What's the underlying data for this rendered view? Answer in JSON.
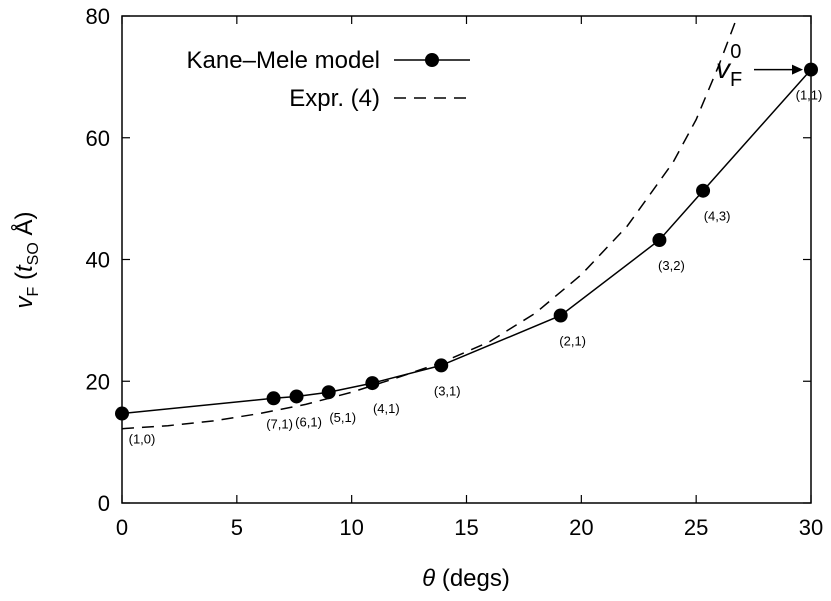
{
  "chart_data": {
    "type": "line",
    "xlabel_symbol": "θ",
    "xlabel_rest": " (degs)",
    "ylabel_v": "v",
    "ylabel_sub": "F",
    "ylabel_open": " (",
    "ylabel_t": "t",
    "ylabel_tsub": "SO",
    "ylabel_close": " Å)",
    "xlim": [
      0,
      30
    ],
    "ylim": [
      0,
      80
    ],
    "xticks": [
      0,
      5,
      10,
      15,
      20,
      25,
      30
    ],
    "yticks": [
      0,
      20,
      40,
      60,
      80
    ],
    "legend_placement": "top-left",
    "series": [
      {
        "name": "Kane–Mele model",
        "style": "solid-with-markers",
        "color": "#000000",
        "points": [
          {
            "x": 0.0,
            "y": 14.7,
            "label": "(1,0)"
          },
          {
            "x": 6.6,
            "y": 17.2,
            "label": "(7,1)"
          },
          {
            "x": 7.6,
            "y": 17.5,
            "label": "(6,1)"
          },
          {
            "x": 9.0,
            "y": 18.2,
            "label": "(5,1)"
          },
          {
            "x": 10.9,
            "y": 19.7,
            "label": "(4,1)"
          },
          {
            "x": 13.9,
            "y": 22.6,
            "label": "(3,1)"
          },
          {
            "x": 19.1,
            "y": 30.8,
            "label": "(2,1)"
          },
          {
            "x": 23.4,
            "y": 43.2,
            "label": "(3,2)"
          },
          {
            "x": 25.3,
            "y": 51.3,
            "label": "(4,3)"
          },
          {
            "x": 30.0,
            "y": 71.2,
            "label": "(1,1)"
          }
        ]
      },
      {
        "name": "Expr. (4)",
        "style": "dashed",
        "color": "#000000",
        "points": [
          {
            "x": 0,
            "y": 12.2
          },
          {
            "x": 2,
            "y": 12.7
          },
          {
            "x": 4,
            "y": 13.5
          },
          {
            "x": 6,
            "y": 14.7
          },
          {
            "x": 8,
            "y": 16.2
          },
          {
            "x": 10,
            "y": 18.2
          },
          {
            "x": 12,
            "y": 20.6
          },
          {
            "x": 14,
            "y": 23.2
          },
          {
            "x": 16,
            "y": 26.5
          },
          {
            "x": 18,
            "y": 31.2
          },
          {
            "x": 20,
            "y": 37.5
          },
          {
            "x": 22,
            "y": 45.5
          },
          {
            "x": 24,
            "y": 56.0
          },
          {
            "x": 25,
            "y": 63.0
          },
          {
            "x": 26,
            "y": 72.0
          },
          {
            "x": 26.8,
            "y": 80.0
          }
        ]
      }
    ],
    "annotation": {
      "text_v": "v",
      "text_sub": "F",
      "text_sup": "0",
      "points_to_x": 30.0,
      "points_to_y": 71.2
    }
  }
}
